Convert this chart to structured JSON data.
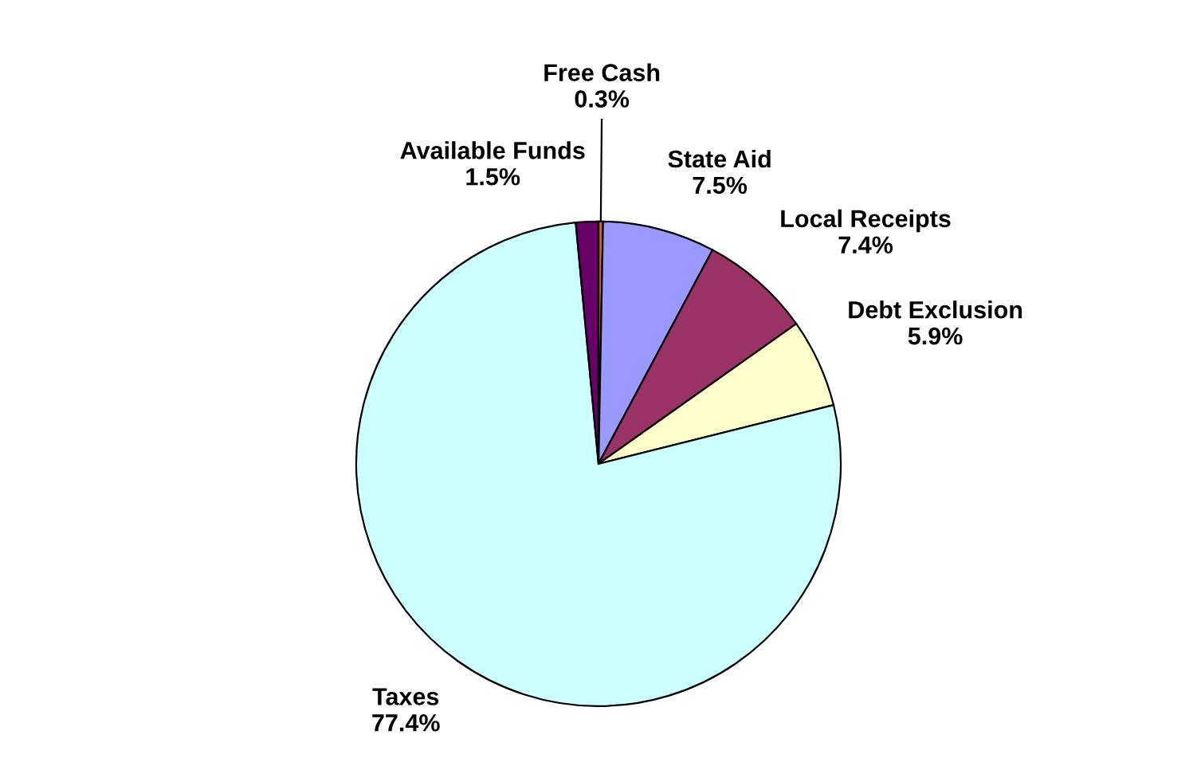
{
  "chart_data": {
    "type": "pie",
    "categories": [
      "Free Cash",
      "State Aid",
      "Local Receipts",
      "Debt Exclusion",
      "Taxes",
      "Available Funds"
    ],
    "values": [
      0.3,
      7.5,
      7.4,
      5.9,
      77.4,
      1.5
    ],
    "colors": [
      "#cc6633",
      "#9999ff",
      "#993366",
      "#ffffcc",
      "#ccffff",
      "#660066"
    ],
    "value_labels": [
      "0.3%",
      "7.5%",
      "7.4%",
      "5.9%",
      "77.4%",
      "1.5%"
    ]
  }
}
